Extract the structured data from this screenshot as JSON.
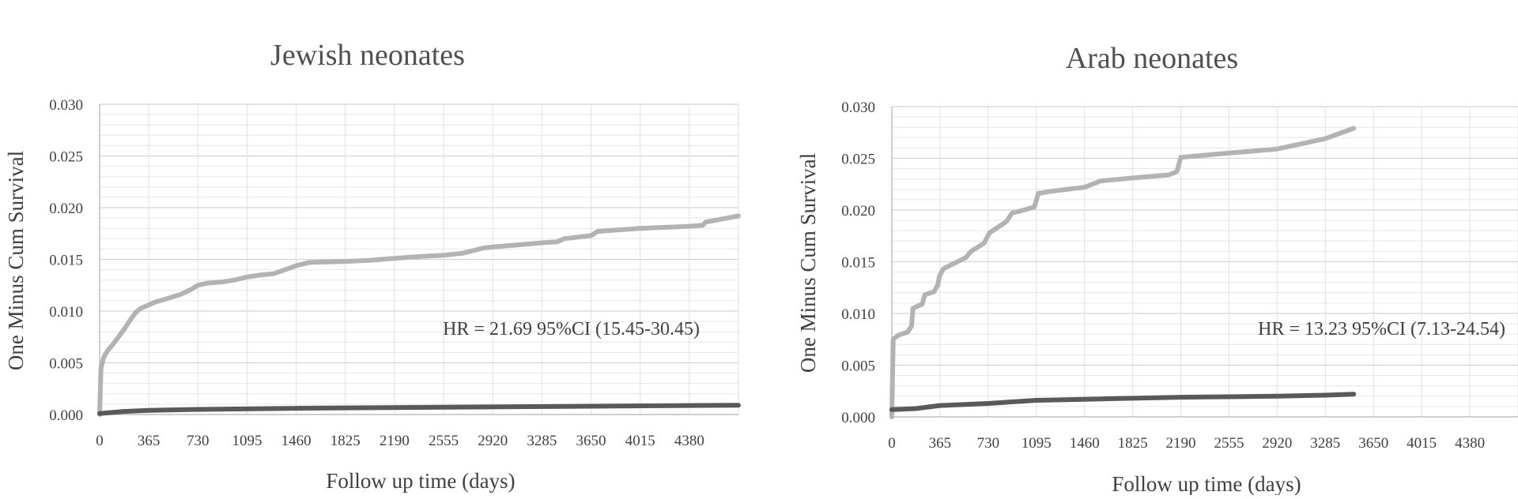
{
  "chart_data": [
    {
      "type": "line",
      "title": "Jewish neonates",
      "xlabel": "Follow up time (days)",
      "ylabel": "One Minus Cum Survival",
      "xlim": [
        0,
        4745
      ],
      "ylim": [
        0,
        0.03
      ],
      "x_ticks": [
        0,
        365,
        730,
        1095,
        1460,
        1825,
        2190,
        2555,
        2920,
        3285,
        3650,
        4015,
        4380
      ],
      "x_tick_labels": [
        "0",
        "365",
        "730",
        "1095",
        "1460",
        "1825",
        "2190",
        "2555",
        "2920",
        "3285",
        "3650",
        "4015",
        "4380"
      ],
      "y_ticks": [
        0,
        0.005,
        0.01,
        0.015,
        0.02,
        0.025,
        0.03
      ],
      "y_tick_labels": [
        "0.000",
        "0.005",
        "0.010",
        "0.015",
        "0.020",
        "0.025",
        "0.030"
      ],
      "grid": "horizontal",
      "annotation": "HR = 21.69 95%CI (15.45-30.45)",
      "series": [
        {
          "color": "#b3b3b3",
          "points": [
            [
              0,
              0
            ],
            [
              10,
              0.0045
            ],
            [
              30,
              0.0055
            ],
            [
              60,
              0.0062
            ],
            [
              100,
              0.0068
            ],
            [
              140,
              0.0075
            ],
            [
              180,
              0.0082
            ],
            [
              230,
              0.0092
            ],
            [
              270,
              0.0099
            ],
            [
              310,
              0.0103
            ],
            [
              365,
              0.0106
            ],
            [
              420,
              0.0109
            ],
            [
              500,
              0.0112
            ],
            [
              600,
              0.0116
            ],
            [
              680,
              0.0121
            ],
            [
              730,
              0.0125
            ],
            [
              800,
              0.0127
            ],
            [
              900,
              0.0128
            ],
            [
              1000,
              0.013
            ],
            [
              1095,
              0.0133
            ],
            [
              1200,
              0.0135
            ],
            [
              1290,
              0.0136
            ],
            [
              1400,
              0.0141
            ],
            [
              1460,
              0.0144
            ],
            [
              1560,
              0.0147
            ],
            [
              1825,
              0.0148
            ],
            [
              2000,
              0.0149
            ],
            [
              2190,
              0.0151
            ],
            [
              2400,
              0.0153
            ],
            [
              2555,
              0.0154
            ],
            [
              2700,
              0.0156
            ],
            [
              2850,
              0.0161
            ],
            [
              2920,
              0.0162
            ],
            [
              3100,
              0.0164
            ],
            [
              3285,
              0.0166
            ],
            [
              3400,
              0.0167
            ],
            [
              3450,
              0.017
            ],
            [
              3650,
              0.0173
            ],
            [
              3700,
              0.0177
            ],
            [
              4015,
              0.018
            ],
            [
              4380,
              0.0182
            ],
            [
              4480,
              0.0183
            ],
            [
              4500,
              0.0186
            ],
            [
              4745,
              0.0192
            ]
          ]
        },
        {
          "color": "#595959",
          "points": [
            [
              0,
              0.0001
            ],
            [
              180,
              0.0003
            ],
            [
              365,
              0.0004
            ],
            [
              730,
              0.0005
            ],
            [
              1460,
              0.0006
            ],
            [
              2555,
              0.0007
            ],
            [
              3650,
              0.0008
            ],
            [
              4745,
              0.0009
            ]
          ]
        }
      ]
    },
    {
      "type": "line",
      "title": "Arab neonates",
      "xlabel": "Follow up time (days)",
      "ylabel": "One Minus Cum Survival",
      "xlim": [
        0,
        4745
      ],
      "ylim": [
        0,
        0.03
      ],
      "x_ticks": [
        0,
        365,
        730,
        1095,
        1460,
        1825,
        2190,
        2555,
        2920,
        3285,
        3650,
        4015,
        4380
      ],
      "x_tick_labels": [
        "0",
        "365",
        "730",
        "1095",
        "1460",
        "1825",
        "2190",
        "2555",
        "2920",
        "3285",
        "3650",
        "4015",
        "4380"
      ],
      "y_ticks": [
        0,
        0.005,
        0.01,
        0.015,
        0.02,
        0.025,
        0.03
      ],
      "y_tick_labels": [
        "0.000",
        "0.005",
        "0.010",
        "0.015",
        "0.020",
        "0.025",
        "0.030"
      ],
      "grid": "horizontal",
      "annotation": "HR = 13.23 95%CI (7.13-24.54)",
      "series": [
        {
          "color": "#b3b3b3",
          "points": [
            [
              0,
              0
            ],
            [
              10,
              0.0075
            ],
            [
              50,
              0.0079
            ],
            [
              120,
              0.0082
            ],
            [
              150,
              0.0088
            ],
            [
              160,
              0.0105
            ],
            [
              230,
              0.0109
            ],
            [
              250,
              0.0118
            ],
            [
              320,
              0.0121
            ],
            [
              350,
              0.0128
            ],
            [
              360,
              0.0136
            ],
            [
              390,
              0.0143
            ],
            [
              450,
              0.0147
            ],
            [
              560,
              0.0154
            ],
            [
              600,
              0.016
            ],
            [
              700,
              0.0168
            ],
            [
              740,
              0.0178
            ],
            [
              800,
              0.0183
            ],
            [
              870,
              0.0189
            ],
            [
              910,
              0.0197
            ],
            [
              1000,
              0.02
            ],
            [
              1080,
              0.0203
            ],
            [
              1110,
              0.0216
            ],
            [
              1200,
              0.0218
            ],
            [
              1460,
              0.0222
            ],
            [
              1580,
              0.0228
            ],
            [
              1825,
              0.0231
            ],
            [
              2100,
              0.0234
            ],
            [
              2160,
              0.0237
            ],
            [
              2190,
              0.0251
            ],
            [
              2555,
              0.0255
            ],
            [
              2920,
              0.0259
            ],
            [
              3100,
              0.0264
            ],
            [
              3285,
              0.0269
            ],
            [
              3500,
              0.0279
            ]
          ]
        },
        {
          "color": "#595959",
          "points": [
            [
              0,
              0.0007
            ],
            [
              180,
              0.0008
            ],
            [
              365,
              0.0011
            ],
            [
              730,
              0.0013
            ],
            [
              1095,
              0.0016
            ],
            [
              1460,
              0.0017
            ],
            [
              1825,
              0.0018
            ],
            [
              2190,
              0.0019
            ],
            [
              2555,
              0.00195
            ],
            [
              2920,
              0.002
            ],
            [
              3285,
              0.0021
            ],
            [
              3500,
              0.0022
            ]
          ]
        }
      ]
    }
  ]
}
